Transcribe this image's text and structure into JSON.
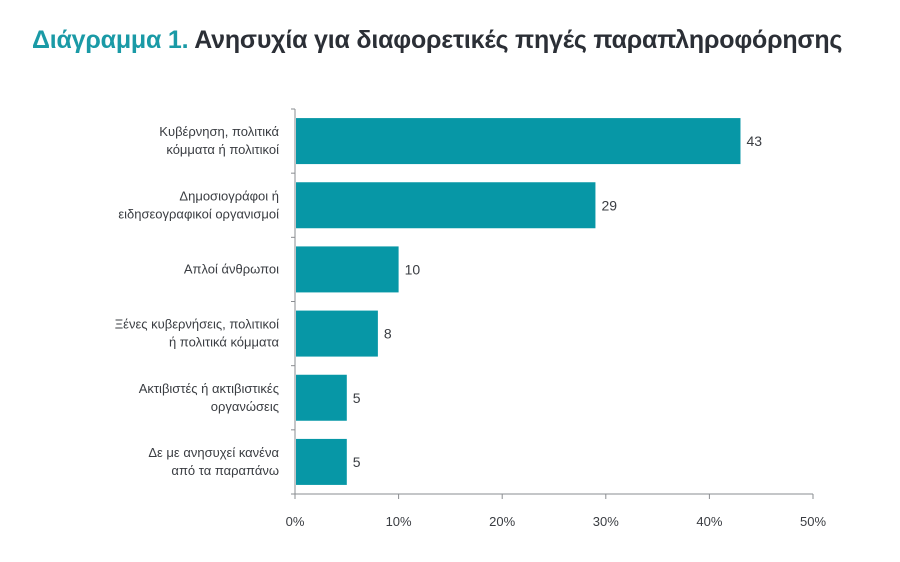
{
  "title": {
    "prefix": "Διάγραμμα 1.",
    "main": "Ανησυχία για διαφορετικές πηγές παραπληροφόρησης"
  },
  "colors": {
    "bar": "#0797a6",
    "title_accent": "#1a9aa6",
    "axis": "#8a8d91"
  },
  "chart_data": {
    "type": "bar",
    "orientation": "horizontal",
    "categories": [
      [
        "Κυβέρνηση, πολιτικά",
        "κόμματα ή πολιτικοί"
      ],
      [
        "Δημοσιογράφοι ή",
        "ειδησεογραφικοί οργανισμοί"
      ],
      [
        "Απλοί άνθρωποι"
      ],
      [
        "Ξένες κυβερνήσεις, πολιτικοί",
        "ή πολιτικά κόμματα"
      ],
      [
        "Ακτιβιστές ή ακτιβιστικές",
        "οργανώσεις"
      ],
      [
        "Δε με ανησυχεί κανένα",
        "από τα παραπάνω"
      ]
    ],
    "values": [
      43,
      29,
      10,
      8,
      5,
      5
    ],
    "xlim": [
      0,
      50
    ],
    "xticks": [
      0,
      10,
      20,
      30,
      40,
      50
    ],
    "xtick_labels": [
      "0%",
      "10%",
      "20%",
      "30%",
      "40%",
      "50%"
    ],
    "grid": false,
    "xlabel": "",
    "ylabel": ""
  }
}
